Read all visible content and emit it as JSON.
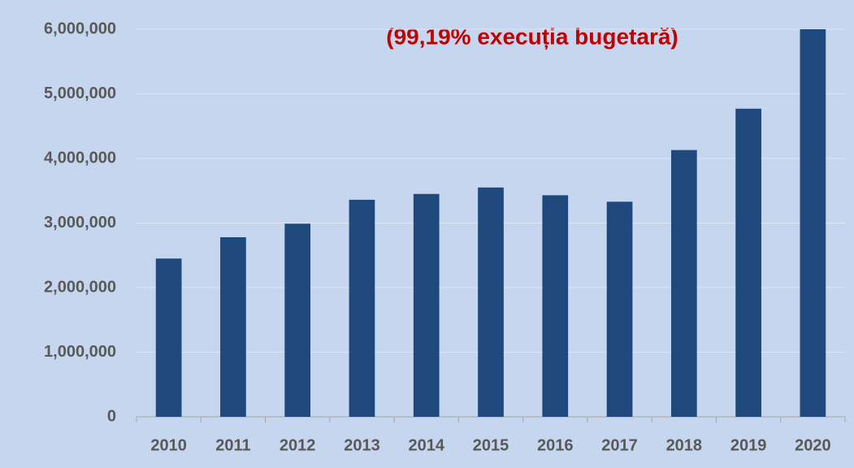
{
  "chart_data": {
    "type": "bar",
    "annotation": "(99,19% execuția bugetară)",
    "categories": [
      "2010",
      "2011",
      "2012",
      "2013",
      "2014",
      "2015",
      "2016",
      "2017",
      "2018",
      "2019",
      "2020"
    ],
    "values": [
      2450000,
      2780000,
      2990000,
      3360000,
      3450000,
      3550000,
      3430000,
      3330000,
      4130000,
      4770000,
      6000000
    ],
    "color": "#1f497d",
    "ylim": [
      0,
      6000000
    ],
    "yticks": [
      0,
      {
        "value": 1000000,
        "label": "1,000,000"
      },
      {
        "value": 2000000,
        "label": "2,000,000"
      },
      {
        "value": 3000000,
        "label": "3,000,000"
      },
      {
        "value": 4000000,
        "label": "4,000,000"
      },
      {
        "value": 5000000,
        "label": "5,000,000"
      },
      {
        "value": 6000000,
        "label": "6,000,000"
      }
    ],
    "grid": true
  }
}
